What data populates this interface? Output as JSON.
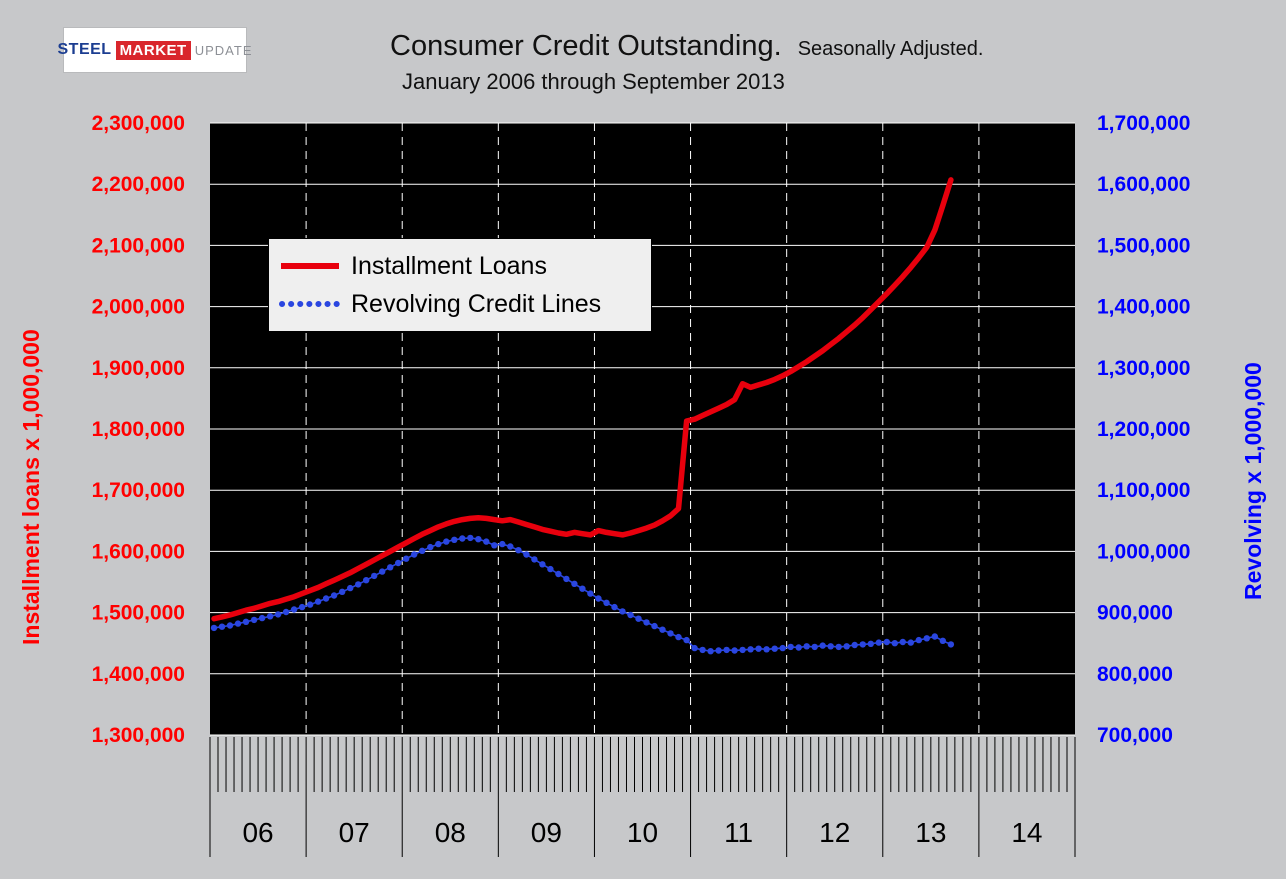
{
  "logo": {
    "steel": "STEEL",
    "market": "MARKET",
    "update": "UPDATE"
  },
  "title": {
    "main": "Consumer Credit Outstanding.",
    "tag": "Seasonally Adjusted.",
    "range": "January 2006 through September 2013"
  },
  "chart_data": {
    "type": "line",
    "title": "Consumer Credit Outstanding.",
    "subtitle": "Seasonally Adjusted.",
    "period": "January 2006 through September 2013",
    "plot_background": "#000000",
    "grid": {
      "horizontal": "solid white",
      "vertical": "dashed white at year boundaries"
    },
    "x_start": "2006-01",
    "x_years": [
      "06",
      "07",
      "08",
      "09",
      "10",
      "11",
      "12",
      "13",
      "14"
    ],
    "left_axis": {
      "label": "Installment loans x 1,000,000",
      "min": 1300000,
      "max": 2300000,
      "step": 100000,
      "color": "#ff0000",
      "tick_labels": [
        "2,300,000",
        "2,200,000",
        "2,100,000",
        "2,000,000",
        "1,900,000",
        "1,800,000",
        "1,700,000",
        "1,600,000",
        "1,500,000",
        "1,400,000",
        "1,300,000"
      ]
    },
    "right_axis": {
      "label": "Revolving x 1,000,000",
      "min": 700000,
      "max": 1700000,
      "step": 100000,
      "color": "#0000ff",
      "tick_labels": [
        "1,700,000",
        "1,600,000",
        "1,500,000",
        "1,400,000",
        "1,300,000",
        "1,200,000",
        "1,100,000",
        "1,000,000",
        "900,000",
        "800,000",
        "700,000"
      ]
    },
    "legend": {
      "position": "upper-left",
      "items": [
        "Installment Loans",
        "Revolving Credit Lines"
      ]
    },
    "series": [
      {
        "name": "Installment Loans",
        "axis": "left",
        "color": "#e8000d",
        "style": "solid",
        "values": [
          1490000,
          1493000,
          1496000,
          1500000,
          1504000,
          1507000,
          1511000,
          1515000,
          1518000,
          1522000,
          1526000,
          1531000,
          1536000,
          1541000,
          1547000,
          1553000,
          1559000,
          1565000,
          1572000,
          1579000,
          1586000,
          1593000,
          1600000,
          1607000,
          1614000,
          1621000,
          1628000,
          1634000,
          1640000,
          1645000,
          1649000,
          1652000,
          1654000,
          1655000,
          1654000,
          1652000,
          1650000,
          1652000,
          1648000,
          1644000,
          1640000,
          1636000,
          1633000,
          1630000,
          1628000,
          1631000,
          1629000,
          1627000,
          1634000,
          1631000,
          1629000,
          1627000,
          1630000,
          1634000,
          1638000,
          1643000,
          1650000,
          1658000,
          1670000,
          1813000,
          1816000,
          1822000,
          1828000,
          1834000,
          1840000,
          1848000,
          1874000,
          1868000,
          1872000,
          1876000,
          1881000,
          1887000,
          1894000,
          1902000,
          1910000,
          1919000,
          1928000,
          1938000,
          1948000,
          1959000,
          1970000,
          1982000,
          1995000,
          2008000,
          2021000,
          2035000,
          2049000,
          2064000,
          2080000,
          2097000,
          2125000,
          2165000,
          2207000
        ]
      },
      {
        "name": "Revolving Credit Lines",
        "axis": "right",
        "color": "#2a46e0",
        "style": "dotted",
        "values": [
          875000,
          877000,
          879000,
          882000,
          885000,
          888000,
          891000,
          894000,
          897000,
          901000,
          905000,
          909000,
          913000,
          918000,
          923000,
          928000,
          934000,
          940000,
          946000,
          953000,
          960000,
          967000,
          974000,
          981000,
          988000,
          995000,
          1001000,
          1007000,
          1012000,
          1016000,
          1019000,
          1021000,
          1022000,
          1020000,
          1016000,
          1010000,
          1012000,
          1008000,
          1002000,
          995000,
          987000,
          979000,
          971000,
          963000,
          955000,
          947000,
          939000,
          931000,
          923000,
          916000,
          909000,
          902000,
          896000,
          890000,
          884000,
          878000,
          872000,
          866000,
          860000,
          855000,
          842000,
          839000,
          837000,
          838000,
          839000,
          838000,
          839000,
          840000,
          841000,
          840000,
          841000,
          842000,
          844000,
          843000,
          845000,
          844000,
          846000,
          845000,
          844000,
          845000,
          847000,
          848000,
          849000,
          851000,
          852000,
          850000,
          852000,
          851000,
          855000,
          858000,
          861000,
          854000,
          848000
        ]
      }
    ]
  }
}
